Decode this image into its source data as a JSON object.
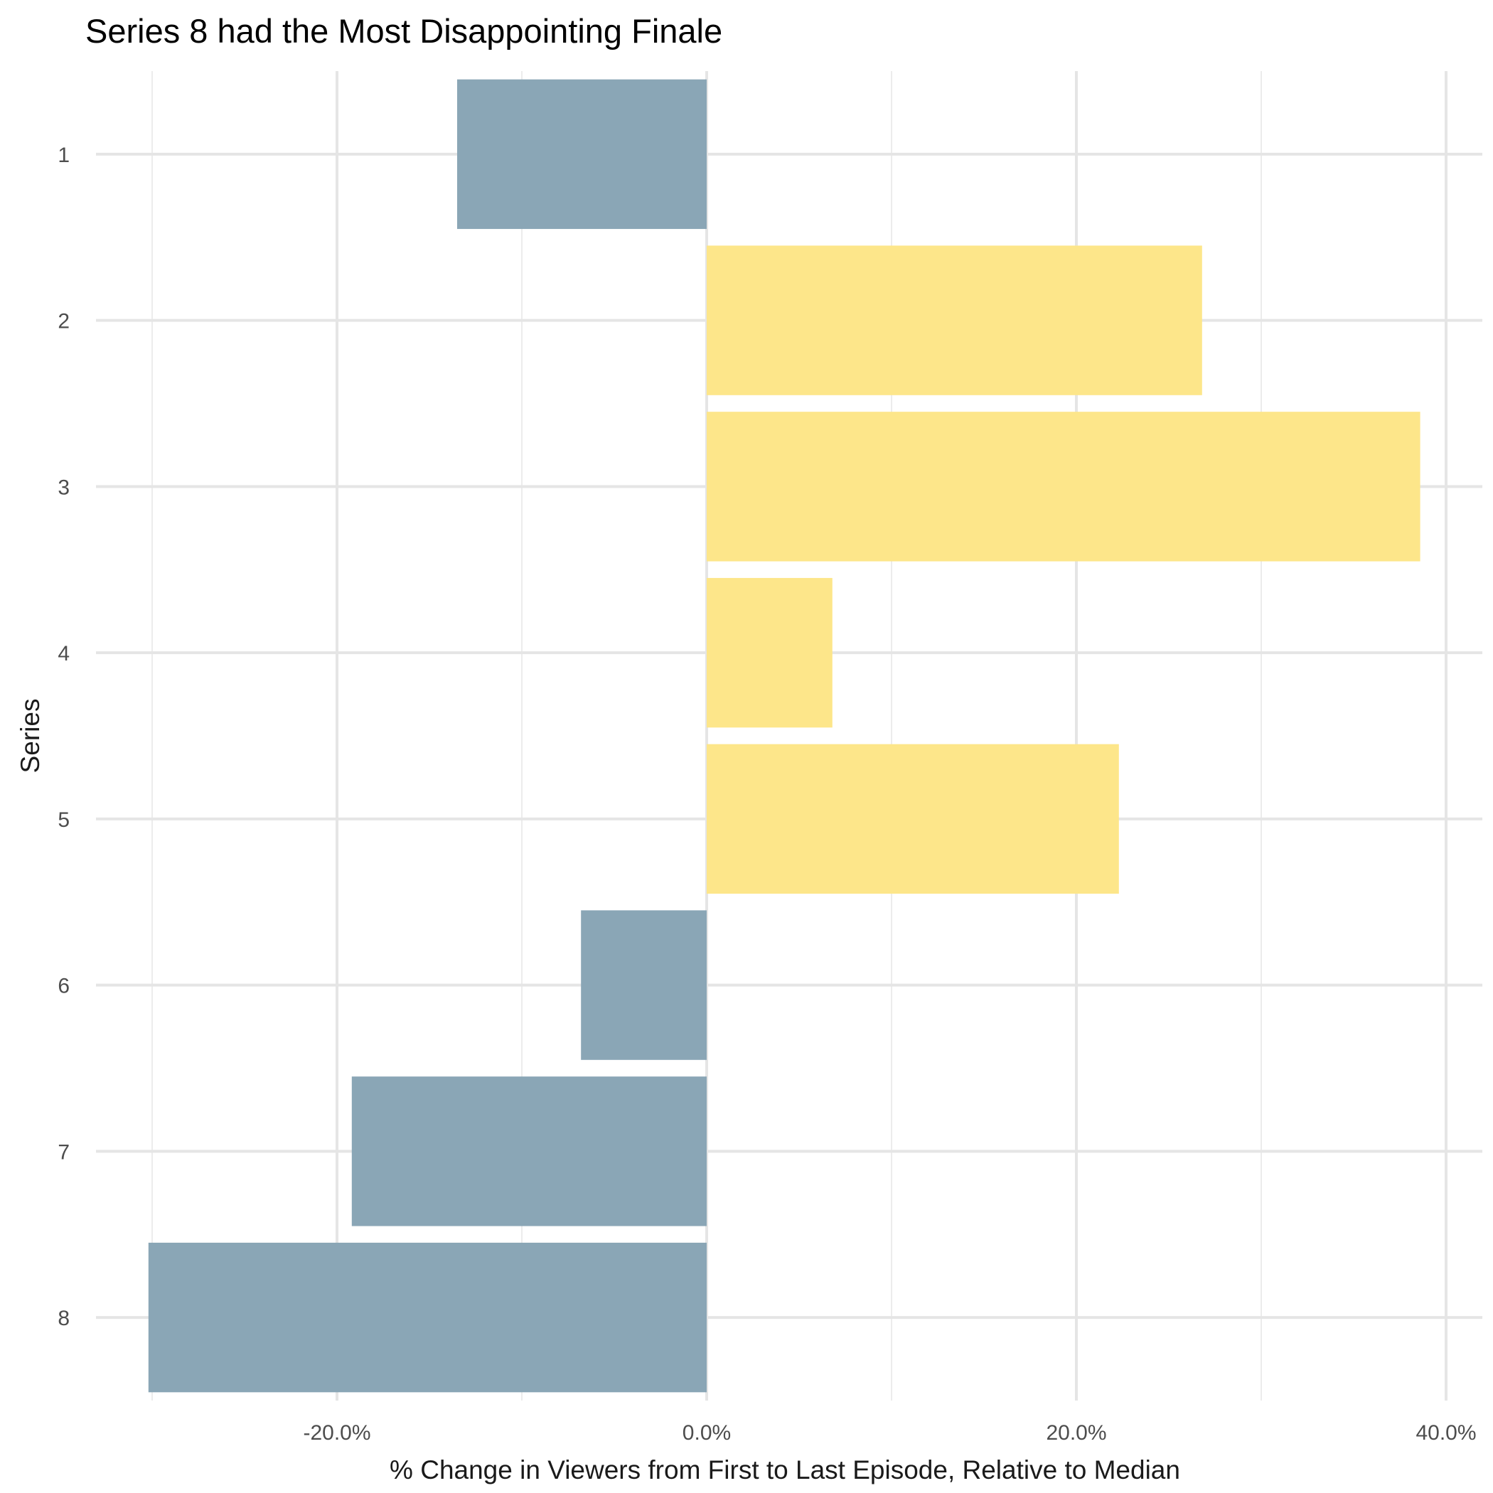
{
  "chart_data": {
    "type": "bar",
    "orientation": "horizontal",
    "title": "Series 8 had the Most Disappointing Finale",
    "xlabel": "% Change in Viewers from First to Last Episode, Relative to Median",
    "ylabel": "Series",
    "categories": [
      "1",
      "2",
      "3",
      "4",
      "5",
      "6",
      "7",
      "8"
    ],
    "values": [
      -13.5,
      26.8,
      38.6,
      6.8,
      22.3,
      -6.8,
      -19.2,
      -30.2
    ],
    "xlim": [
      -30,
      40
    ],
    "xticks": [
      -20,
      0,
      20,
      40
    ],
    "xtick_labels": [
      "-20.0%",
      "0.0%",
      "20.0%",
      "40.0%"
    ],
    "grid": true,
    "colors": {
      "positive": "#FDE68A",
      "negative": "#8AA6B6"
    },
    "bar_opacity": 1.0
  }
}
